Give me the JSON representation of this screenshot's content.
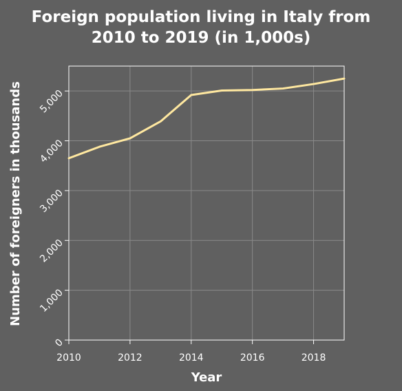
{
  "chart_data": {
    "type": "line",
    "title_lines": [
      "Foreign population living in Italy from",
      "2010 to 2019 (in 1,000s)"
    ],
    "xlabel": "Year",
    "ylabel": "Number of foreigners in thousands",
    "x": [
      2010,
      2011,
      2012,
      2013,
      2014,
      2015,
      2016,
      2017,
      2018,
      2019
    ],
    "series": [
      {
        "values": [
          3650,
          3880,
          4050,
          4390,
          4920,
          5010,
          5020,
          5050,
          5140,
          5250
        ]
      }
    ],
    "xlim": [
      2010,
      2019
    ],
    "ylim": [
      0,
      5500
    ],
    "x_ticks": [
      2010,
      2012,
      2014,
      2016,
      2018
    ],
    "x_tick_labels": [
      "2010",
      "2012",
      "2014",
      "2016",
      "2018"
    ],
    "y_ticks": [
      0,
      1000,
      2000,
      3000,
      4000,
      5000
    ],
    "y_tick_labels": [
      "0",
      "1,000",
      "2,000",
      "3,000",
      "4,000",
      "5,000"
    ],
    "grid": true,
    "colors": {
      "background": "#606060",
      "line": "#ffe8a0",
      "grid": "#8a8a8a",
      "text": "#ffffff"
    }
  }
}
